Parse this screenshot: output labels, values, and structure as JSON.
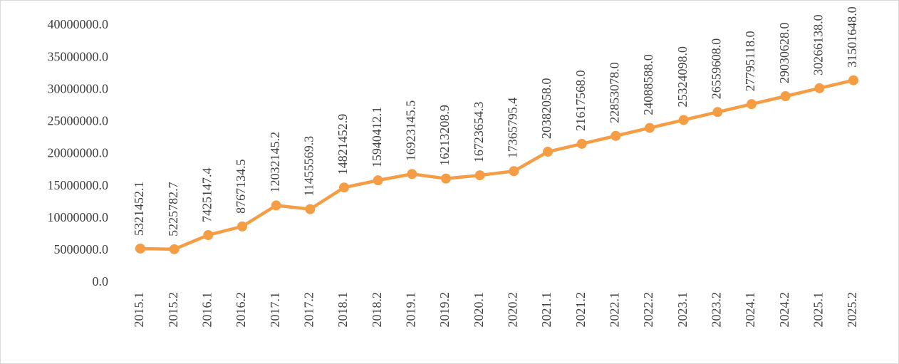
{
  "chart_data": {
    "type": "line",
    "categories": [
      "2015.1",
      "2015.2",
      "2016.1",
      "2016.2",
      "2017.1",
      "2017.2",
      "2018.1",
      "2018.2",
      "2019.1",
      "2019.2",
      "2020.1",
      "2020.2",
      "2021.1",
      "2021.2",
      "2022.1",
      "2022.2",
      "2023.1",
      "2023.2",
      "2024.1",
      "2024.2",
      "2025.1",
      "2025.2"
    ],
    "values": [
      5321452.1,
      5225782.7,
      7425147.4,
      8767134.5,
      12032145.2,
      11455569.3,
      14821452.9,
      15940412.1,
      16923145.5,
      16213208.9,
      16723654.3,
      17365795.4,
      20382058.0,
      21617568.0,
      22853078.0,
      24088588.0,
      25324098.0,
      26559608.0,
      27795118.0,
      29030628.0,
      30266138.0,
      31501648.0
    ],
    "value_labels": [
      "5321452.1",
      "5225782.7",
      "7425147.4",
      "8767134.5",
      "12032145.2",
      "11455569.3",
      "14821452.9",
      "15940412.1",
      "16923145.5",
      "16213208.9",
      "16723654.3",
      "17365795.4",
      "20382058.0",
      "21617568.0",
      "22853078.0",
      "24088588.0",
      "25324098.0",
      "26559608.0",
      "27795118.0",
      "29030628.0",
      "30266138.0",
      "31501648.0"
    ],
    "color": "#f59d45",
    "ylim": [
      0,
      40000000
    ],
    "yticks": [
      {
        "value": 0,
        "label": "0.0"
      },
      {
        "value": 5000000,
        "label": "5000000.0"
      },
      {
        "value": 10000000,
        "label": "10000000.0"
      },
      {
        "value": 15000000,
        "label": "15000000.0"
      },
      {
        "value": 20000000,
        "label": "20000000.0"
      },
      {
        "value": 25000000,
        "label": "25000000.0"
      },
      {
        "value": 30000000,
        "label": "30000000.0"
      },
      {
        "value": 35000000,
        "label": "35000000.0"
      },
      {
        "value": 40000000,
        "label": "40000000.0"
      }
    ],
    "grid": false
  }
}
